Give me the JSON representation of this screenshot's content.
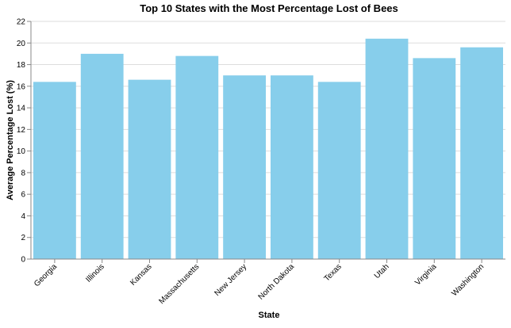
{
  "chart_data": {
    "type": "bar",
    "title": "Top 10 States with the Most Percentage Lost of Bees",
    "xlabel": "State",
    "ylabel": "Average Percentage Lost (%)",
    "categories": [
      "Georgia",
      "Illinois",
      "Kansas",
      "Massachusetts",
      "New Jersey",
      "North Dakota",
      "Texas",
      "Utah",
      "Virginia",
      "Washington"
    ],
    "values": [
      16.4,
      19.0,
      16.6,
      18.8,
      17.0,
      17.0,
      16.4,
      20.4,
      18.6,
      19.6
    ],
    "ylim": [
      0,
      22
    ],
    "yticks": [
      0,
      2,
      4,
      6,
      8,
      10,
      12,
      14,
      16,
      18,
      20,
      22
    ],
    "grid": true,
    "bar_color": "#87ceeb",
    "legend": "none"
  }
}
